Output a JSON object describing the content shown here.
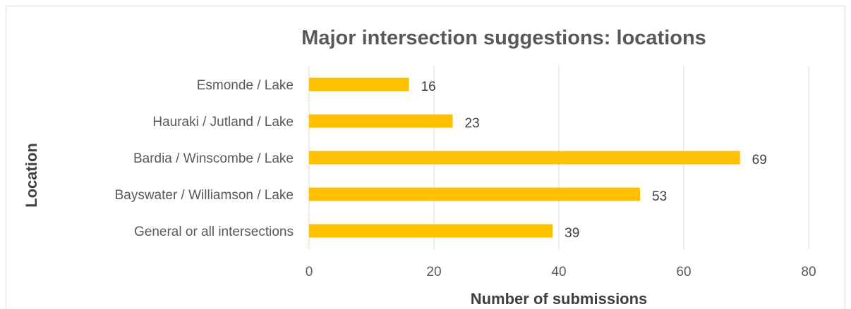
{
  "chart_data": {
    "type": "bar",
    "orientation": "horizontal",
    "title": "Major intersection suggestions: locations",
    "xlabel": "Number of submissions",
    "ylabel": "Location",
    "categories": [
      "Esmonde / Lake",
      "Hauraki / Jutland / Lake",
      "Bardia / Winscombe / Lake",
      "Bayswater / Williamson / Lake",
      "General or all intersections"
    ],
    "values": [
      16,
      23,
      69,
      53,
      39
    ],
    "xlim": [
      0,
      80
    ],
    "xticks": [
      0,
      20,
      40,
      60,
      80
    ],
    "grid": true,
    "legend": "none",
    "bar_color": "#ffc000"
  }
}
